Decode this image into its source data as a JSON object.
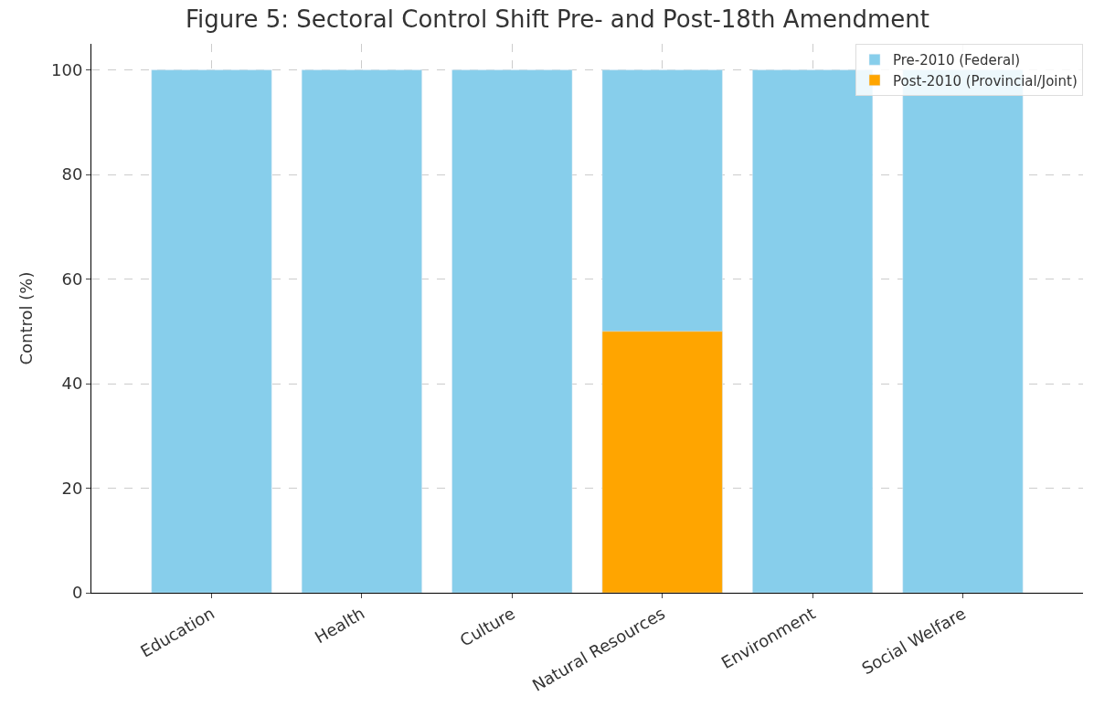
{
  "chart_data": {
    "type": "bar",
    "title": "Figure 5: Sectoral Control Shift Pre- and Post-18th Amendment",
    "ylabel": "Control (%)",
    "categories": [
      "Education",
      "Health",
      "Culture",
      "Natural Resources",
      "Environment",
      "Social Welfare"
    ],
    "series": [
      {
        "name": "Pre-2010 (Federal)",
        "color": "#87ceeb",
        "values": [
          100,
          100,
          100,
          100,
          100,
          100
        ]
      },
      {
        "name": "Post-2010 (Provincial/Joint)",
        "color": "#ffa500",
        "values": [
          null,
          null,
          null,
          50,
          null,
          null
        ]
      }
    ],
    "ylim": [
      0,
      105
    ],
    "yticks": [
      0,
      20,
      40,
      60,
      80,
      100
    ],
    "grid": true,
    "legend": "top right"
  }
}
